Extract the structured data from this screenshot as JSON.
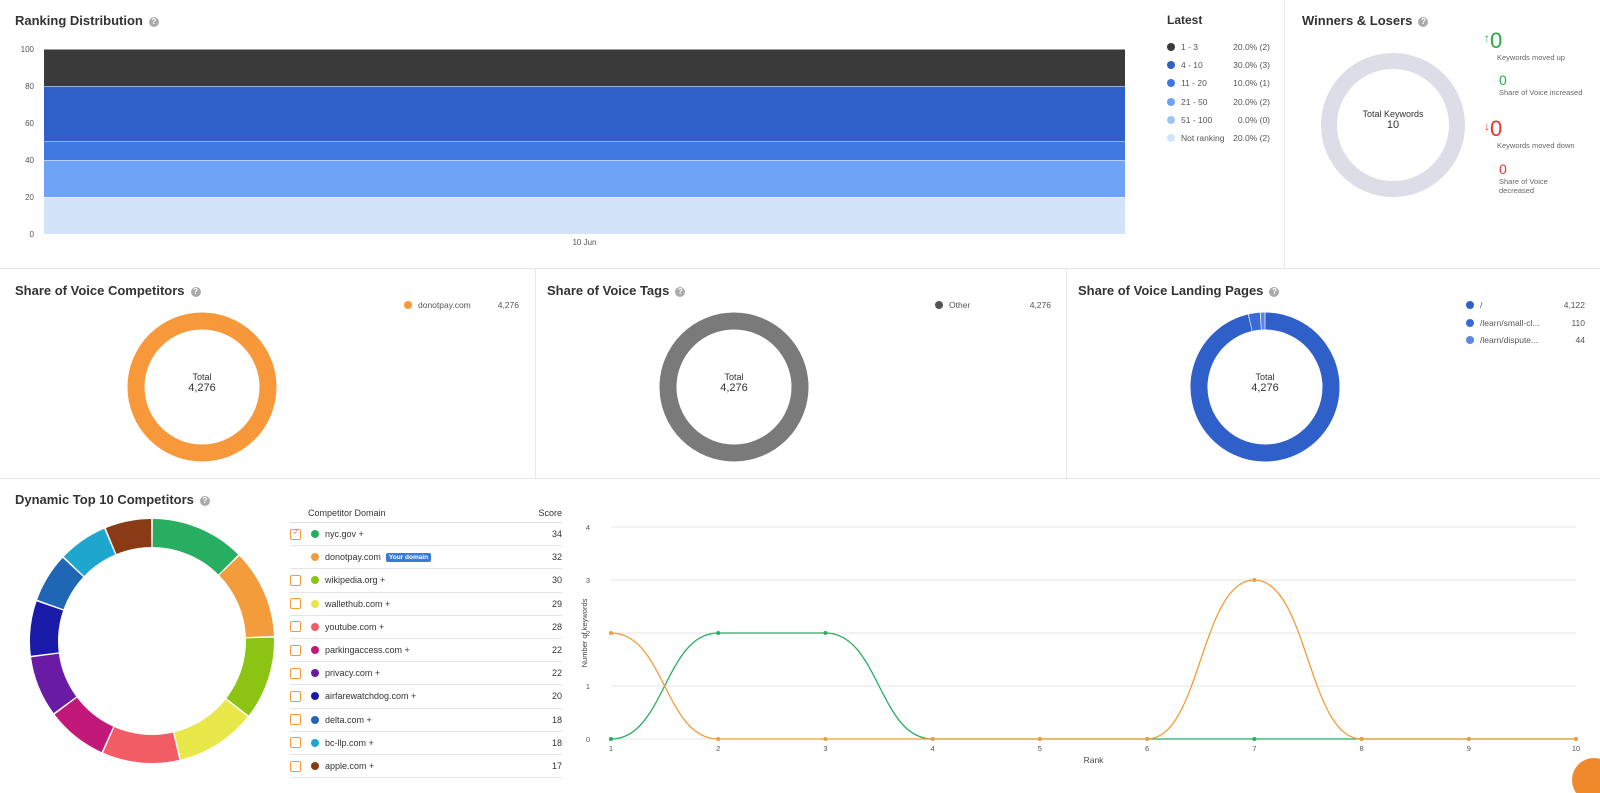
{
  "ranking": {
    "title": "Ranking Distribution",
    "y_ticks": [
      "100",
      "80",
      "60",
      "40",
      "20",
      "0"
    ],
    "x_label": "10 Jun",
    "legend_title": "Latest",
    "legend": [
      {
        "label": "1 - 3",
        "value": "20.0% (2)",
        "color": "#3a3a3a"
      },
      {
        "label": "4 - 10",
        "value": "30.0% (3)",
        "color": "#2f5fc8"
      },
      {
        "label": "11 - 20",
        "value": "10.0% (1)",
        "color": "#3f78e0"
      },
      {
        "label": "21 - 50",
        "value": "20.0% (2)",
        "color": "#6fa3f5"
      },
      {
        "label": "51 - 100",
        "value": "0.0% (0)",
        "color": "#9fc3f7"
      },
      {
        "label": "Not ranking",
        "value": "20.0% (2)",
        "color": "#d3e3fa"
      }
    ]
  },
  "chart_data": [
    {
      "type": "area",
      "title": "Ranking Distribution",
      "x": [
        "10 Jun"
      ],
      "ylim": [
        0,
        100
      ],
      "series": [
        {
          "name": "Not ranking",
          "values": [
            20
          ]
        },
        {
          "name": "51 - 100",
          "values": [
            0
          ]
        },
        {
          "name": "21 - 50",
          "values": [
            20
          ]
        },
        {
          "name": "11 - 20",
          "values": [
            10
          ]
        },
        {
          "name": "4 - 10",
          "values": [
            30
          ]
        },
        {
          "name": "1 - 3",
          "values": [
            20
          ]
        }
      ]
    },
    {
      "type": "pie",
      "title": "Share of Voice Competitors",
      "categories": [
        "donotpay.com"
      ],
      "values": [
        4276
      ]
    },
    {
      "type": "pie",
      "title": "Share of Voice Tags",
      "categories": [
        "Other"
      ],
      "values": [
        4276
      ]
    },
    {
      "type": "pie",
      "title": "Share of Voice Landing Pages",
      "categories": [
        "/",
        "/learn/small-cl...",
        "/learn/dispute..."
      ],
      "values": [
        4122,
        110,
        44
      ]
    },
    {
      "type": "pie",
      "title": "Dynamic Top 10 Competitors",
      "categories": [
        "nyc.gov",
        "donotpay.com",
        "wikipedia.org",
        "wallethub.com",
        "youtube.com",
        "parkingaccess.com",
        "privacy.com",
        "airfarewatchdog.com",
        "delta.com",
        "bc-llp.com",
        "apple.com"
      ],
      "values": [
        34,
        32,
        30,
        29,
        28,
        22,
        22,
        20,
        18,
        18,
        17
      ]
    },
    {
      "type": "line",
      "xlabel": "Rank",
      "ylabel": "Number of keywords",
      "x": [
        1,
        2,
        3,
        4,
        5,
        6,
        7,
        8,
        9,
        10
      ],
      "ylim": [
        0,
        4
      ],
      "series": [
        {
          "name": "nyc.gov",
          "values": [
            0,
            2,
            2,
            0,
            0,
            0,
            0,
            0,
            0,
            0
          ]
        },
        {
          "name": "donotpay.com",
          "values": [
            2,
            0,
            0,
            0,
            0,
            0,
            3,
            0,
            0,
            0
          ]
        }
      ]
    }
  ],
  "winners": {
    "title": "Winners & Losers",
    "center_label": "Total Keywords",
    "center_value": "10",
    "moved_up_value": "0",
    "moved_up_label": "Keywords moved up",
    "sov_inc_value": "0",
    "sov_inc_label": "Share of Voice increased",
    "moved_down_value": "0",
    "moved_down_label": "Keywords moved down",
    "sov_dec_value": "0",
    "sov_dec_label_1": "Share of Voice",
    "sov_dec_label_2": "decreased",
    "up_color": "#27a844",
    "down_color": "#e3342f"
  },
  "sov_competitors": {
    "title": "Share of Voice Competitors",
    "legend_label": "donotpay.com",
    "legend_value": "4,276",
    "color": "#f7993a",
    "center_label": "Total",
    "center_value": "4,276"
  },
  "sov_tags": {
    "title": "Share of Voice Tags",
    "legend_label": "Other",
    "legend_value": "4,276",
    "color": "#7a7a7a",
    "center_label": "Total",
    "center_value": "4,276"
  },
  "sov_landing": {
    "title": "Share of Voice Landing Pages",
    "center_label": "Total",
    "center_value": "4,276",
    "legend": [
      {
        "label": "/",
        "value": "4,122",
        "color": "#2f5fc8"
      },
      {
        "label": "/learn/small-cl...",
        "value": "110",
        "color": "#3a6ad6"
      },
      {
        "label": "/learn/dispute...",
        "value": "44",
        "color": "#5a88e0"
      }
    ]
  },
  "top10": {
    "title": "Dynamic Top 10 Competitors",
    "col_domain": "Competitor Domain",
    "col_score": "Score",
    "your_domain_badge": "Your domain",
    "rows": [
      {
        "domain": "nyc.gov +",
        "score": "34",
        "color": "#27ae60",
        "checked": true,
        "own": false
      },
      {
        "domain": "donotpay.com",
        "score": "32",
        "color": "#f39c3c",
        "checked": false,
        "own": true
      },
      {
        "domain": "wikipedia.org +",
        "score": "30",
        "color": "#8cc414",
        "checked": false,
        "own": false
      },
      {
        "domain": "wallethub.com +",
        "score": "29",
        "color": "#e8e84a",
        "checked": false,
        "own": false
      },
      {
        "domain": "youtube.com +",
        "score": "28",
        "color": "#f25c64",
        "checked": false,
        "own": false
      },
      {
        "domain": "parkingaccess.com +",
        "score": "22",
        "color": "#c2187a",
        "checked": false,
        "own": false
      },
      {
        "domain": "privacy.com +",
        "score": "22",
        "color": "#6a1ba6",
        "checked": false,
        "own": false
      },
      {
        "domain": "airfarewatchdog.com +",
        "score": "20",
        "color": "#1a1aa8",
        "checked": false,
        "own": false
      },
      {
        "domain": "delta.com +",
        "score": "18",
        "color": "#1f67b5",
        "checked": false,
        "own": false
      },
      {
        "domain": "bc-llp.com +",
        "score": "18",
        "color": "#1fa6cf",
        "checked": false,
        "own": false
      },
      {
        "domain": "apple.com +",
        "score": "17",
        "color": "#8a3a14",
        "checked": false,
        "own": false
      }
    ],
    "line_xlabel": "Rank",
    "line_ylabel": "Number of keywords",
    "line_yticks": [
      "4",
      "3",
      "2",
      "1",
      "0"
    ],
    "line_xticks": [
      "1",
      "2",
      "3",
      "4",
      "5",
      "6",
      "7",
      "8",
      "9",
      "10"
    ]
  }
}
